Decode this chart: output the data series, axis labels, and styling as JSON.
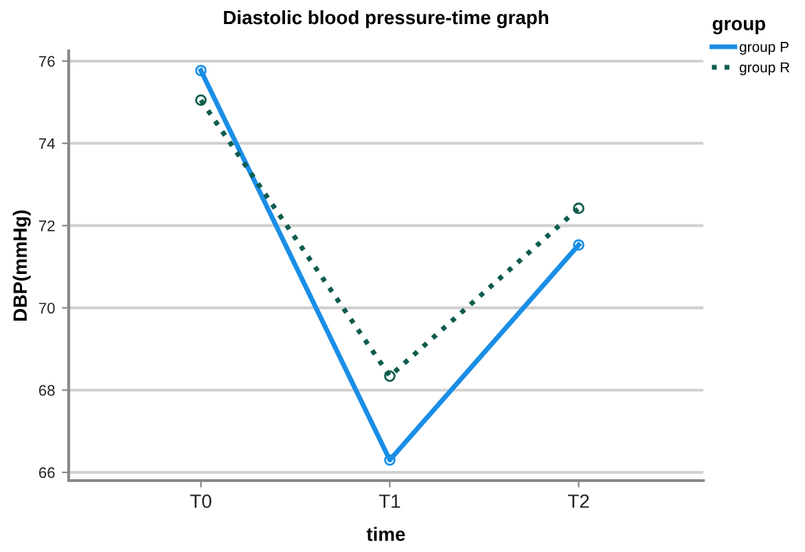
{
  "chart_data": {
    "type": "line",
    "title": "Diastolic blood pressure-time graph",
    "xlabel": "time",
    "ylabel": "DBP(mmHg)",
    "legend_title": "group",
    "categories": [
      "T0",
      "T1",
      "T2"
    ],
    "series": [
      {
        "name": "group P",
        "color": "#1a8ee6",
        "values": [
          75.77,
          66.3,
          71.53
        ],
        "line_style": "solid"
      },
      {
        "name": "group R",
        "color": "#0e5c4f",
        "values": [
          75.05,
          68.34,
          72.42
        ],
        "line_style": "dotted"
      }
    ],
    "ylim": [
      65.8,
      76.25
    ],
    "yticks": [
      66,
      68,
      70,
      72,
      74,
      76
    ],
    "grid": "y",
    "legend": "top right",
    "marker": "circle"
  }
}
